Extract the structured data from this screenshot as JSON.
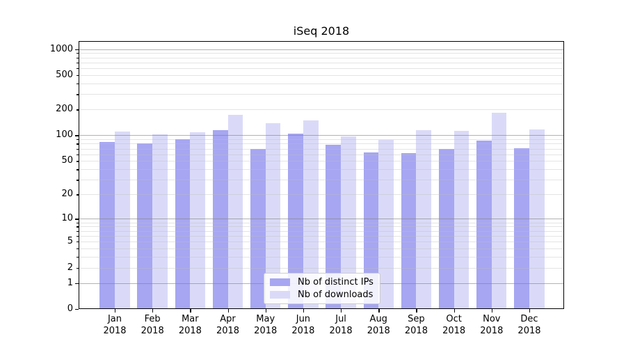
{
  "title": "iSeq 2018",
  "year_label": "2018",
  "colors": {
    "ips_bar": "#a6a6f2",
    "downloads_bar": "#dadaf8",
    "grid_major": "#b0b0b0",
    "grid_minor": "#e6e6e6",
    "axis": "#000000",
    "legend_border": "#cccccc"
  },
  "legend": {
    "position": "lower center",
    "items": [
      "Nb of distinct IPs",
      "Nb of downloads"
    ]
  },
  "chart_data": {
    "type": "bar",
    "title": "iSeq 2018",
    "categories": [
      "Jan 2018",
      "Feb 2018",
      "Mar 2018",
      "Apr 2018",
      "May 2018",
      "Jun 2018",
      "Jul 2018",
      "Aug 2018",
      "Sep 2018",
      "Oct 2018",
      "Nov 2018",
      "Dec 2018"
    ],
    "months": [
      "Jan",
      "Feb",
      "Mar",
      "Apr",
      "May",
      "Jun",
      "Jul",
      "Aug",
      "Sep",
      "Oct",
      "Nov",
      "Dec"
    ],
    "series": [
      {
        "name": "Nb of distinct IPs",
        "color": "#a6a6f2",
        "values": [
          83,
          80,
          90,
          114,
          70,
          105,
          77,
          63,
          62,
          69,
          87,
          71
        ]
      },
      {
        "name": "Nb of downloads",
        "color": "#dadaf8",
        "values": [
          110,
          102,
          108,
          172,
          139,
          150,
          97,
          88,
          115,
          113,
          182,
          117
        ]
      }
    ],
    "xlabel": "",
    "ylabel": "",
    "yscale": "log(1+x)",
    "ylim": [
      0,
      1250
    ],
    "y_tick_labels": [
      1000,
      500,
      200,
      100,
      50,
      20,
      10,
      5,
      2,
      1,
      0
    ],
    "y_major_ticks": [
      0,
      1,
      10,
      100,
      1000
    ],
    "y_minor_gridlines": [
      2,
      3,
      4,
      5,
      6,
      7,
      8,
      9,
      20,
      30,
      40,
      50,
      60,
      70,
      80,
      90,
      200,
      300,
      400,
      500,
      600,
      700,
      800,
      900
    ],
    "grid": true,
    "legend_position": "lower center"
  }
}
